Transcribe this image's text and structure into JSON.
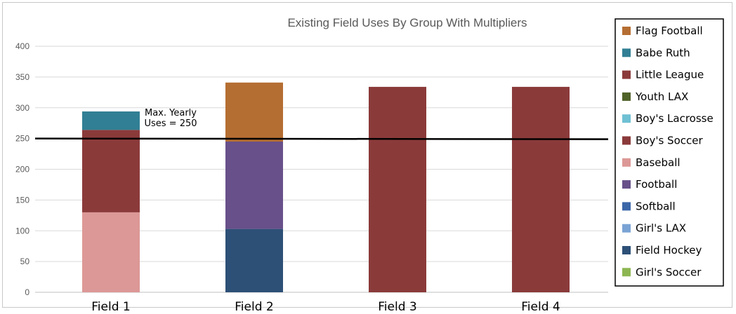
{
  "chart_data": {
    "type": "bar",
    "stacked": true,
    "title": "Existing Field Uses By Group With Multipliers",
    "categories": [
      "Field 1",
      "Field 2",
      "Field 3",
      "Field 4"
    ],
    "ylim": [
      0,
      400
    ],
    "yticks": [
      0,
      50,
      100,
      150,
      200,
      250,
      300,
      350,
      400
    ],
    "grid": true,
    "legend_position": "right",
    "series": [
      {
        "name": "Girl's Soccer",
        "color": "#8db652",
        "values": [
          0,
          0,
          0,
          0
        ]
      },
      {
        "name": "Field Hockey",
        "color": "#2d5077",
        "values": [
          0,
          103,
          0,
          0
        ]
      },
      {
        "name": "Girl's LAX",
        "color": "#7aa3d5",
        "values": [
          0,
          0,
          0,
          0
        ]
      },
      {
        "name": "Softball",
        "color": "#3b66a8",
        "values": [
          0,
          0,
          0,
          0
        ]
      },
      {
        "name": "Football",
        "color": "#68508a",
        "values": [
          0,
          142,
          0,
          0
        ]
      },
      {
        "name": "Baseball",
        "color": "#dc9896",
        "values": [
          130,
          0,
          0,
          0
        ]
      },
      {
        "name": "Boy's Soccer",
        "color": "#8b3a3a",
        "values": [
          134,
          0,
          334,
          334
        ]
      },
      {
        "name": "Boy's Lacrosse",
        "color": "#6fc0d3",
        "values": [
          0,
          0,
          0,
          0
        ]
      },
      {
        "name": "Youth LAX",
        "color": "#4f6228",
        "values": [
          0,
          0,
          0,
          0
        ]
      },
      {
        "name": "Little League",
        "color": "#8b3a3a",
        "values": [
          0,
          0,
          0,
          0
        ]
      },
      {
        "name": "Babe Ruth",
        "color": "#317f94",
        "values": [
          30,
          0,
          0,
          0
        ]
      },
      {
        "name": "Flag Football",
        "color": "#b56e32",
        "values": [
          0,
          96,
          0,
          0
        ]
      }
    ],
    "legend": [
      "Flag Football",
      "Babe Ruth",
      "Little League",
      "Youth LAX",
      "Boy's Lacrosse",
      "Boy's Soccer",
      "Baseball",
      "Football",
      "Softball",
      "Girl's LAX",
      "Field Hockey",
      "Girl's Soccer"
    ],
    "reference_line": {
      "value": 250,
      "label_lines": [
        "Max. Yearly",
        "Uses = 250"
      ]
    }
  }
}
